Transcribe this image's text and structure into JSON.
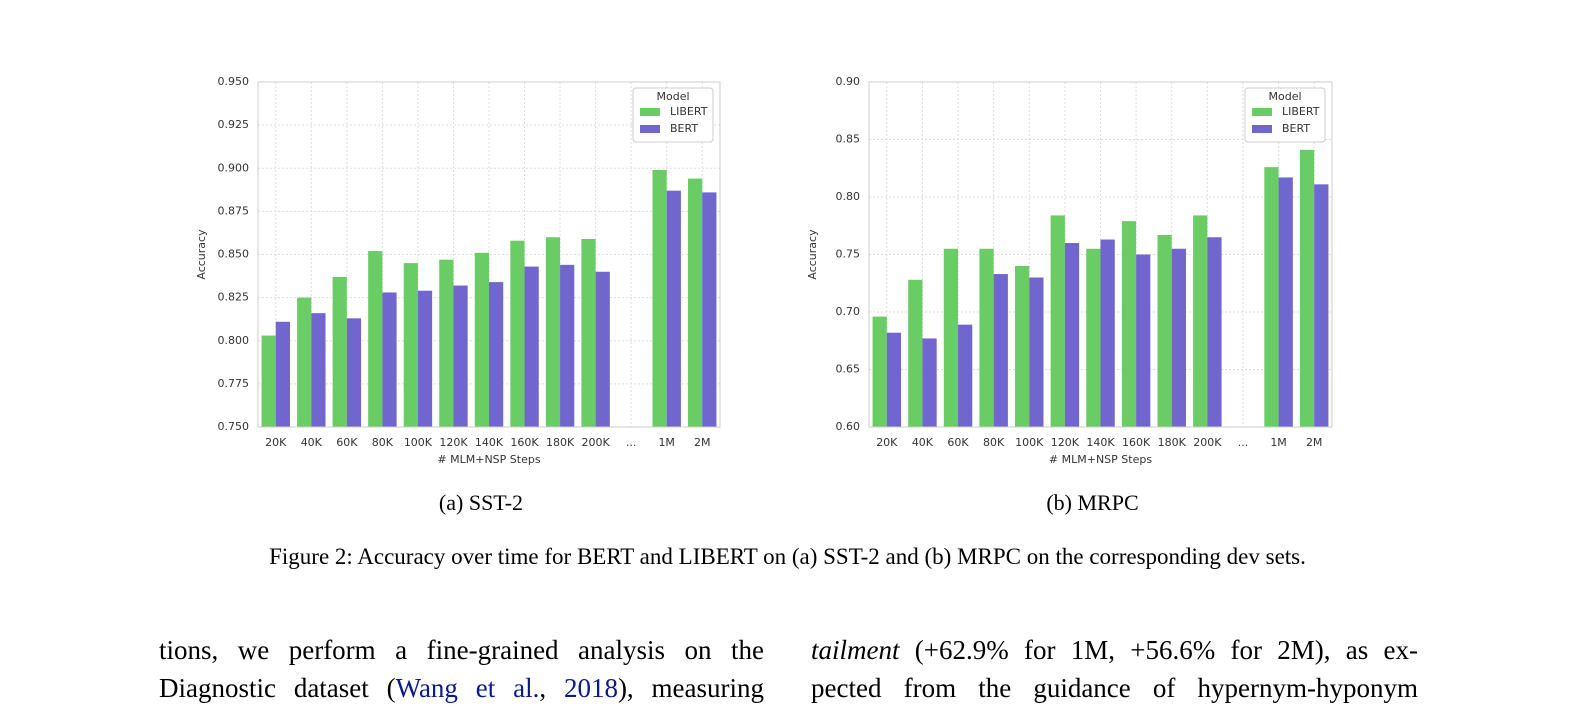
{
  "chart_data": [
    {
      "type": "bar",
      "caption": "(a) SST-2",
      "xlabel": "# MLM+NSP Steps",
      "ylabel": "Accuracy",
      "categories": [
        "20K",
        "40K",
        "60K",
        "80K",
        "100K",
        "120K",
        "140K",
        "160K",
        "180K",
        "200K",
        "...",
        "1M",
        "2M"
      ],
      "series": [
        {
          "name": "LIBERT",
          "color": "#6acc65",
          "values": [
            0.803,
            0.825,
            0.837,
            0.852,
            0.845,
            0.847,
            0.851,
            0.858,
            0.86,
            0.859,
            null,
            0.899,
            0.894
          ]
        },
        {
          "name": "BERT",
          "color": "#7066cd",
          "values": [
            0.811,
            0.816,
            0.813,
            0.828,
            0.829,
            0.832,
            0.834,
            0.843,
            0.844,
            0.84,
            null,
            0.887,
            0.886
          ]
        }
      ],
      "ylim": [
        0.75,
        0.95
      ],
      "yticks": [
        {
          "value": 0.75,
          "label": "0.750"
        },
        0.775,
        {
          "value": 0.8,
          "label": "0.800"
        },
        0.825,
        {
          "value": 0.85,
          "label": "0.850"
        },
        0.875,
        {
          "value": 0.9,
          "label": "0.900"
        },
        0.925,
        {
          "value": 0.95,
          "label": "0.950"
        }
      ],
      "grid": true,
      "legend": "upper right",
      "legend_title": "Model"
    },
    {
      "type": "bar",
      "caption": "(b) MRPC",
      "xlabel": "# MLM+NSP Steps",
      "ylabel": "Accuracy",
      "categories": [
        "20K",
        "40K",
        "60K",
        "80K",
        "100K",
        "120K",
        "140K",
        "160K",
        "180K",
        "200K",
        "...",
        "1M",
        "2M"
      ],
      "series": [
        {
          "name": "LIBERT",
          "color": "#6acc65",
          "values": [
            0.696,
            0.728,
            0.755,
            0.755,
            0.74,
            0.784,
            0.755,
            0.779,
            0.767,
            0.784,
            null,
            0.826,
            0.841
          ]
        },
        {
          "name": "BERT",
          "color": "#7066cd",
          "values": [
            0.682,
            0.677,
            0.689,
            0.733,
            0.73,
            0.76,
            0.763,
            0.75,
            0.755,
            0.765,
            null,
            0.817,
            0.811
          ]
        }
      ],
      "ylim": [
        0.6,
        0.9
      ],
      "yticks": [
        {
          "value": 0.6,
          "label": "0.60"
        },
        0.65,
        {
          "value": 0.7,
          "label": "0.70"
        },
        0.75,
        {
          "value": 0.8,
          "label": "0.80"
        },
        0.85,
        {
          "value": 0.9,
          "label": "0.90"
        }
      ],
      "grid": true,
      "legend": "upper right",
      "legend_title": "Model"
    }
  ],
  "figure_caption": "Figure 2: Accuracy over time for BERT and LIBERT on (a) SST-2 and (b) MRPC on the corresponding dev sets.",
  "body": {
    "left": [
      [
        "tions, we perform a fine-grained analysis on the"
      ],
      [
        "Diagnostic dataset (",
        "Wang et al.",
        ", ",
        "2018",
        "), measuring"
      ]
    ],
    "right": [
      [
        "tailment",
        " (+62.9% for 1M, +56.6% for 2M), as ex-"
      ],
      [
        "pected from the guidance of hypernym-hyponym"
      ]
    ]
  }
}
